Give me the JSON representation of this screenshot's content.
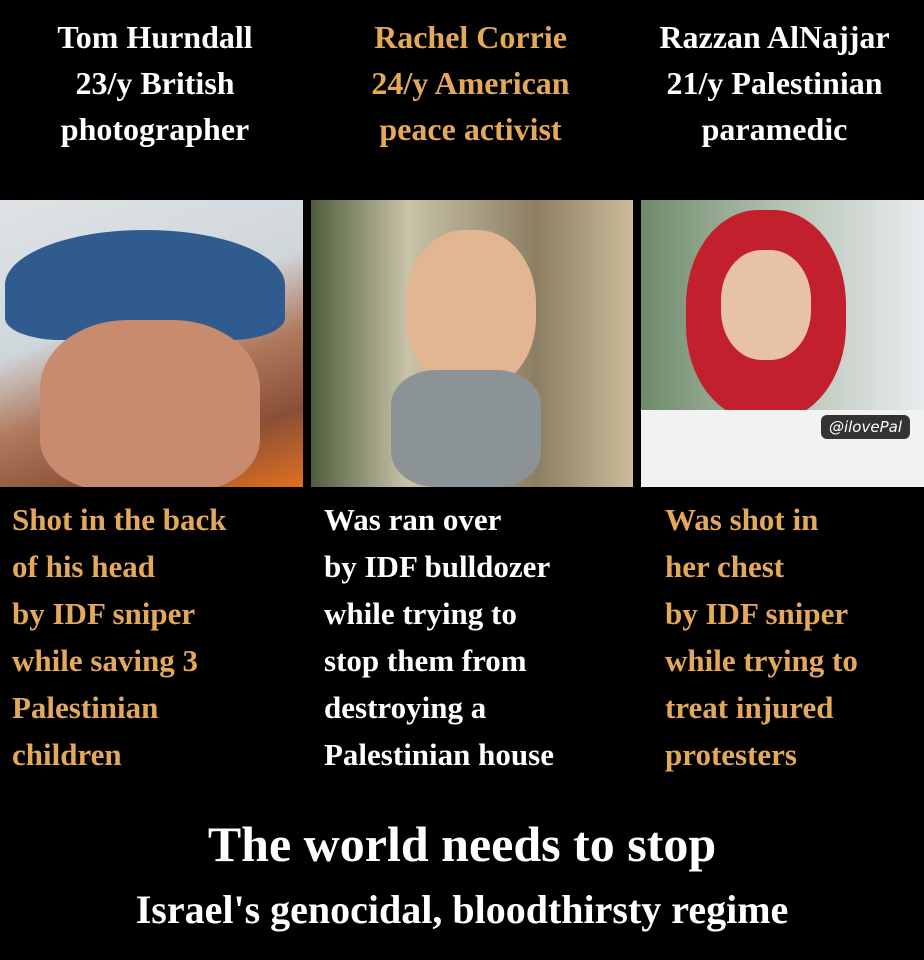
{
  "people": [
    {
      "name": "Tom Hurndall",
      "age_line": "23/y British",
      "role": "photographer",
      "header_color": "#ffffff",
      "body_color": "#e3a85a",
      "description": [
        "Shot in the back",
        "of his head",
        "by IDF sniper",
        "while saving 3",
        "Palestinian",
        "children"
      ]
    },
    {
      "name": "Rachel Corrie",
      "age_line": "24/y American",
      "role": "peace activist",
      "header_color": "#e3a85a",
      "body_color": "#ffffff",
      "description": [
        "Was ran over",
        "by IDF bulldozer",
        "while trying to",
        "stop them from",
        "destroying a",
        "Palestinian house"
      ]
    },
    {
      "name": "Razzan AlNajjar",
      "age_line": "21/y Palestinian",
      "role": "paramedic",
      "header_color": "#ffffff",
      "body_color": "#e3a85a",
      "description": [
        "Was shot in",
        "her chest",
        "by IDF sniper",
        "while trying to",
        "treat injured",
        "protesters"
      ]
    }
  ],
  "watermark": "@ilovePal",
  "footer": {
    "line1": "The world needs to stop",
    "line2": "Israel's genocidal, bloodthirsty regime"
  }
}
